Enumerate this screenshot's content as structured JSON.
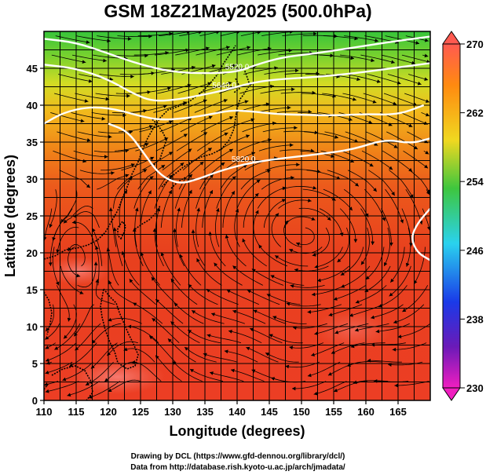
{
  "title": "GSM 18Z21May2025 (500.0hPa)",
  "x_axis": {
    "label": "Longitude (degrees)",
    "min": 110,
    "max": 170,
    "ticks": [
      "110",
      "115",
      "120",
      "125",
      "130",
      "135",
      "140",
      "145",
      "150",
      "155",
      "160",
      "165"
    ]
  },
  "y_axis": {
    "label": "Latitude  (degrees)",
    "min": 0,
    "max": 50,
    "ticks": [
      "0",
      "5",
      "10",
      "15",
      "20",
      "25",
      "30",
      "35",
      "40",
      "45"
    ]
  },
  "colorbar": {
    "min": 230,
    "max": 270,
    "labels": [
      "230",
      "238",
      "246",
      "254",
      "262",
      "270"
    ]
  },
  "contours": [
    {
      "label": "5520.0",
      "points": [
        [
          110,
          49
        ],
        [
          115,
          48.5
        ],
        [
          120,
          47
        ],
        [
          125,
          45.5
        ],
        [
          130,
          44.5
        ],
        [
          135,
          44.3
        ],
        [
          140,
          44.5
        ],
        [
          143,
          45.5
        ],
        [
          147,
          46.5
        ],
        [
          152,
          47
        ],
        [
          158,
          47.8
        ],
        [
          164,
          48.6
        ],
        [
          170,
          49.3
        ]
      ]
    },
    {
      "label": "5640.0",
      "points": [
        [
          110,
          45.5
        ],
        [
          115,
          45
        ],
        [
          120,
          43.5
        ],
        [
          124,
          41.5
        ],
        [
          127,
          40.5
        ],
        [
          131,
          40.8
        ],
        [
          134,
          41.3
        ],
        [
          138,
          42
        ],
        [
          142,
          43
        ],
        [
          146,
          43.5
        ],
        [
          152,
          43.8
        ],
        [
          158,
          44.3
        ],
        [
          164,
          45
        ],
        [
          170,
          45.7
        ]
      ]
    },
    {
      "label": "",
      "points": [
        [
          110,
          37.5
        ],
        [
          113,
          39
        ],
        [
          117,
          39.8
        ],
        [
          121,
          39.5
        ],
        [
          125,
          38.5
        ],
        [
          128,
          38
        ],
        [
          132,
          38.2
        ],
        [
          136,
          38.8
        ],
        [
          139,
          39.3
        ],
        [
          142,
          39.2
        ],
        [
          146,
          38.8
        ],
        [
          150,
          38.7
        ],
        [
          155,
          38.6
        ],
        [
          160,
          38.8
        ],
        [
          165,
          38.7
        ],
        [
          169,
          40
        ]
      ]
    },
    {
      "label": "5820.0",
      "points": [
        [
          120,
          37.5
        ],
        [
          123,
          36.5
        ],
        [
          125.5,
          33.5
        ],
        [
          128,
          30.5
        ],
        [
          131,
          29.3
        ],
        [
          134,
          30
        ],
        [
          137,
          31
        ],
        [
          141,
          32
        ],
        [
          145,
          32.6
        ],
        [
          149,
          33
        ],
        [
          153,
          33.4
        ],
        [
          158,
          34
        ],
        [
          163,
          35.4
        ],
        [
          167,
          34.8
        ],
        [
          170,
          35.5
        ]
      ]
    },
    {
      "label": "",
      "points": [
        [
          170,
          26
        ],
        [
          168,
          24
        ],
        [
          167,
          22
        ],
        [
          168,
          20
        ],
        [
          170,
          19
        ]
      ]
    }
  ],
  "colors": {
    "background": "#ffffff",
    "warm": "#e53a1e",
    "orange": "#f08a18",
    "yellow": "#f2d421",
    "green": "#3ac83a",
    "cyan": "#2bd0ec",
    "blue": "#1a4fe0",
    "purple": "#6a1fc0",
    "magenta": "#e01ea8"
  },
  "credits": {
    "line1": "Drawing by DCL (https://www.gfd-dennou.org/library/dcl/)",
    "line2": "Data from http://database.rish.kyoto-u.ac.jp/arch/jmadata/"
  }
}
